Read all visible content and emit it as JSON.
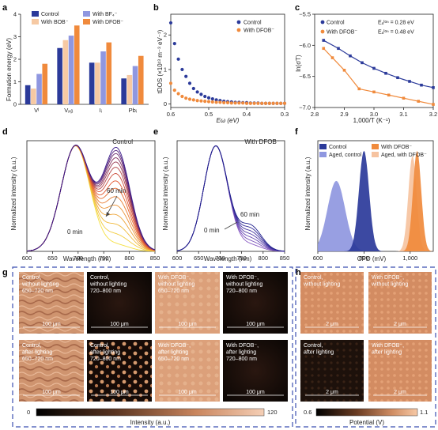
{
  "panels": {
    "a": {
      "letter": "a",
      "ylabel": "Formation energy (eV)",
      "legend": [
        "Control",
        "With BOB⁻",
        "With BF₄⁻",
        "With DFOB⁻"
      ],
      "xticks": [
        "Vᴵ",
        "Vₚᵦ",
        "Iᵢ",
        "Pbᵢ"
      ]
    },
    "b": {
      "letter": "b",
      "ylabel": "tDOS (×10¹³ m⁻³ eV⁻¹)",
      "xlabel": "Eω (eV)",
      "legend": [
        "Control",
        "With DFOB⁻"
      ]
    },
    "c": {
      "letter": "c",
      "ylabel": "ln(σT)",
      "xlabel": "1,000/T (K⁻¹)",
      "legend_control": "Control",
      "legend_control_ea": "Eₐᴵᵒⁿ = 0.28 eV",
      "legend_dfob": "With DFOB⁻",
      "legend_dfob_ea": "Eₐᴵᵒⁿ = 0.48 eV"
    },
    "d": {
      "letter": "d",
      "title": "Control",
      "ylabel": "Normalized intensity (a.u.)",
      "xlabel": "Wavelength (nm)",
      "ann_top": "60 min",
      "ann_bottom": "0 min"
    },
    "e": {
      "letter": "e",
      "title": "With DFOB⁻",
      "ylabel": "Normalized intensity (a.u.)",
      "xlabel": "Wavelength (nm)",
      "ann_top": "60 min",
      "ann_bottom": "0 min"
    },
    "f": {
      "letter": "f",
      "ylabel": "Normalized intensity (a.u.)",
      "xlabel": "CPD (mV)",
      "legend": [
        "Control",
        "With DFOB⁻",
        "Aged, control",
        "Aged, with DFOB⁻"
      ]
    },
    "g": {
      "letter": "g",
      "tiles": [
        {
          "text": [
            "Control,",
            "without lighting",
            "650–720 nm"
          ],
          "scale": "100 μm"
        },
        {
          "text": [
            "Control,",
            "without lighting",
            "720–800 nm"
          ],
          "scale": "100 μm"
        },
        {
          "text": [
            "With DFOB⁻,",
            "without lighting",
            "650–720 nm"
          ],
          "scale": "100 μm"
        },
        {
          "text": [
            "With DFOB⁻,",
            "without lighting",
            "720–800 nm"
          ],
          "scale": "100 μm"
        },
        {
          "text": [
            "Control,",
            "after lighting",
            "650–720 nm"
          ],
          "scale": "100 μm"
        },
        {
          "text": [
            "Control,",
            "after lighting",
            "720–800 nm"
          ],
          "scale": "100 μm"
        },
        {
          "text": [
            "With DFOB⁻,",
            "after lighting",
            "650–720 nm"
          ],
          "scale": "100 μm"
        },
        {
          "text": [
            "With DFOB⁻,",
            "after lighting",
            "720–800 nm"
          ],
          "scale": "100 μm"
        }
      ],
      "colorbar_min": "0",
      "colorbar_max": "120",
      "colorbar_label": "Intensity (a.u.)"
    },
    "h": {
      "letter": "h",
      "tiles": [
        {
          "text": [
            "Control,",
            "without lighting"
          ],
          "scale": "2 μm"
        },
        {
          "text": [
            "With DFOB⁻,",
            "without lighting"
          ],
          "scale": "2 μm"
        },
        {
          "text": [
            "Control,",
            "after lighting"
          ],
          "scale": "2 μm"
        },
        {
          "text": [
            "With DFOB⁻,",
            "after lighting"
          ],
          "scale": "2 μm"
        }
      ],
      "colorbar_min": "0.6",
      "colorbar_max": "1.1",
      "colorbar_label": "Potential (V)"
    }
  },
  "colors": {
    "control": "#2b3a9a",
    "bob": "#f6c9a3",
    "bf4": "#8f97e0",
    "dfob": "#f08a3c"
  },
  "chart_data": [
    {
      "panel": "a",
      "type": "bar",
      "categories": [
        "Vᴵ",
        "Vₚᵦ",
        "Iᵢ",
        "Pbᵢ"
      ],
      "series": [
        {
          "name": "Control",
          "values": [
            0.85,
            2.5,
            1.85,
            1.15
          ]
        },
        {
          "name": "With BOB⁻",
          "values": [
            0.7,
            2.85,
            1.85,
            1.3
          ]
        },
        {
          "name": "With BF₄⁻",
          "values": [
            1.35,
            3.05,
            2.35,
            1.7
          ]
        },
        {
          "name": "With DFOB⁻",
          "values": [
            1.8,
            3.5,
            2.75,
            2.15
          ]
        }
      ],
      "ylim": [
        0,
        4
      ],
      "yticks": [
        0,
        1,
        2,
        3,
        4
      ]
    },
    {
      "panel": "b",
      "type": "scatter",
      "x_reversed": true,
      "xlim": [
        0.6,
        0.3
      ],
      "ylim": [
        -0.1,
        2.6
      ],
      "xticks": [
        0.6,
        0.5,
        0.4,
        0.3
      ],
      "yticks": [
        0,
        1,
        2
      ],
      "series": [
        {
          "name": "Control",
          "x": [
            0.6,
            0.59,
            0.58,
            0.57,
            0.56,
            0.55,
            0.54,
            0.53,
            0.52,
            0.51,
            0.5,
            0.49,
            0.48,
            0.47,
            0.46,
            0.45,
            0.44,
            0.43,
            0.42,
            0.41,
            0.4,
            0.39,
            0.38,
            0.37,
            0.36,
            0.35,
            0.34,
            0.33,
            0.32,
            0.31,
            0.3
          ],
          "y": [
            2.35,
            1.75,
            1.3,
            1.0,
            0.8,
            0.6,
            0.45,
            0.35,
            0.28,
            0.22,
            0.18,
            0.15,
            0.12,
            0.1,
            0.08,
            0.07,
            0.06,
            0.05,
            0.05,
            0.04,
            0.04,
            0.03,
            0.03,
            0.03,
            0.02,
            0.02,
            0.02,
            0.02,
            0.02,
            0.02,
            0.02
          ]
        },
        {
          "name": "With DFOB⁻",
          "x": [
            0.6,
            0.59,
            0.58,
            0.57,
            0.56,
            0.55,
            0.54,
            0.53,
            0.52,
            0.51,
            0.5,
            0.49,
            0.48,
            0.47,
            0.46,
            0.45,
            0.44,
            0.43,
            0.42,
            0.41,
            0.4,
            0.39,
            0.38,
            0.37,
            0.36,
            0.35,
            0.34,
            0.33,
            0.32,
            0.31,
            0.3
          ],
          "y": [
            0.6,
            0.4,
            0.3,
            0.22,
            0.17,
            0.14,
            0.12,
            0.1,
            0.09,
            0.08,
            0.07,
            0.06,
            0.05,
            0.05,
            0.04,
            0.04,
            0.03,
            0.03,
            0.03,
            0.03,
            0.02,
            0.02,
            0.02,
            0.02,
            0.02,
            0.02,
            0.02,
            0.02,
            0.02,
            0.02,
            0.02
          ]
        }
      ]
    },
    {
      "panel": "c",
      "type": "scatter",
      "xlim": [
        2.8,
        3.2
      ],
      "ylim": [
        -7.0,
        -5.5
      ],
      "xticks": [
        2.8,
        2.9,
        3.0,
        3.1,
        3.2
      ],
      "yticks": [
        -5.5,
        -6.0,
        -6.5,
        -7.0
      ],
      "series": [
        {
          "name": "Control",
          "x": [
            2.83,
            2.88,
            2.92,
            2.96,
            3.0,
            3.04,
            3.08,
            3.12,
            3.16,
            3.2
          ],
          "y": [
            -5.92,
            -6.05,
            -6.17,
            -6.28,
            -6.37,
            -6.45,
            -6.52,
            -6.58,
            -6.64,
            -6.68
          ]
        },
        {
          "name": "With DFOB⁻",
          "x": [
            2.83,
            2.86,
            2.9,
            2.95,
            3.0,
            3.05,
            3.1,
            3.15,
            3.2
          ],
          "y": [
            -6.05,
            -6.2,
            -6.4,
            -6.7,
            -6.75,
            -6.8,
            -6.85,
            -6.9,
            -6.95
          ]
        }
      ]
    },
    {
      "panel": "d",
      "type": "line",
      "xlim": [
        600,
        850
      ],
      "xticks": [
        600,
        650,
        700,
        750,
        800,
        850
      ],
      "peak1_nm": 695,
      "peak2_nm": 775,
      "time_minutes_first": 0,
      "time_minutes_last": 60,
      "peak2_relative_heights_first_to_last": [
        0.06,
        0.15,
        0.24,
        0.33,
        0.42,
        0.5,
        0.58,
        0.65,
        0.72,
        0.78,
        0.83,
        0.87,
        0.91,
        0.94,
        0.97
      ]
    },
    {
      "panel": "e",
      "type": "line",
      "xlim": [
        600,
        850
      ],
      "xticks": [
        600,
        650,
        700,
        750,
        800,
        850
      ],
      "peak1_nm": 690,
      "peak2_nm": 770,
      "time_minutes_first": 0,
      "time_minutes_last": 60,
      "peak2_relative_heights_first_to_last": [
        0.06,
        0.09,
        0.12,
        0.15,
        0.18,
        0.21,
        0.24
      ]
    },
    {
      "panel": "f",
      "type": "area",
      "xlim": [
        600,
        1100
      ],
      "xticks": [
        600,
        800,
        1000
      ],
      "series": [
        {
          "name": "Control",
          "center_mV": 800,
          "peak": 1.0
        },
        {
          "name": "With DFOB⁻",
          "center_mV": 1030,
          "peak": 1.0
        },
        {
          "name": "Aged, control",
          "center_mV": 680,
          "peak": 0.7
        },
        {
          "name": "Aged, with DFOB⁻",
          "center_mV": 1010,
          "peak": 0.95
        }
      ]
    }
  ]
}
